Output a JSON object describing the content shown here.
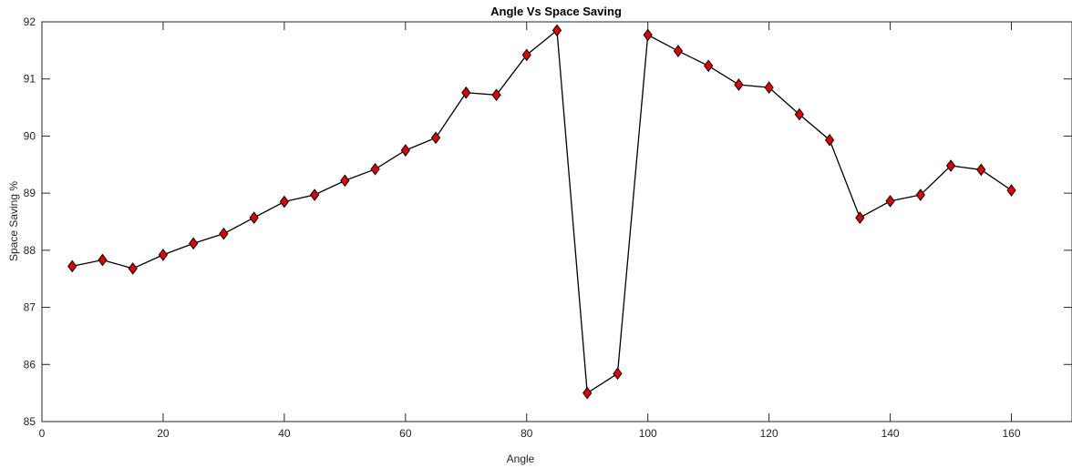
{
  "chart_data": {
    "type": "line",
    "title": "Angle Vs Space Saving",
    "xlabel": "Angle",
    "ylabel": "Space Saving %",
    "xlim": [
      0,
      170
    ],
    "ylim": [
      85,
      92
    ],
    "xticks": [
      0,
      20,
      40,
      60,
      80,
      100,
      120,
      140,
      160
    ],
    "yticks": [
      85,
      86,
      87,
      88,
      89,
      90,
      91,
      92
    ],
    "xtick_labels": [
      "0",
      "20",
      "40",
      "60",
      "80",
      "100",
      "120",
      "140",
      "160"
    ],
    "ytick_labels": [
      "85",
      "86",
      "87",
      "88",
      "89",
      "90",
      "91",
      "92"
    ],
    "grid": false,
    "legend": "none",
    "series": [
      {
        "x": [
          5,
          10,
          15,
          20,
          25,
          30,
          35,
          40,
          45,
          50,
          55,
          60,
          65,
          70,
          75,
          80,
          85,
          90,
          95,
          100,
          105,
          110,
          115,
          120,
          125,
          130,
          135,
          140,
          145,
          150,
          155,
          160
        ],
        "values": [
          87.72,
          87.83,
          87.68,
          87.92,
          88.12,
          88.29,
          88.57,
          88.85,
          88.97,
          89.22,
          89.42,
          89.75,
          89.97,
          90.76,
          90.72,
          91.42,
          91.85,
          85.5,
          85.84,
          91.77,
          91.49,
          91.23,
          90.9,
          90.85,
          90.38,
          89.93,
          88.57,
          88.86,
          88.97,
          89.48,
          89.41,
          89.05
        ],
        "line_color": "#000000",
        "marker": "diamond",
        "marker_color": "#e60000"
      }
    ]
  }
}
